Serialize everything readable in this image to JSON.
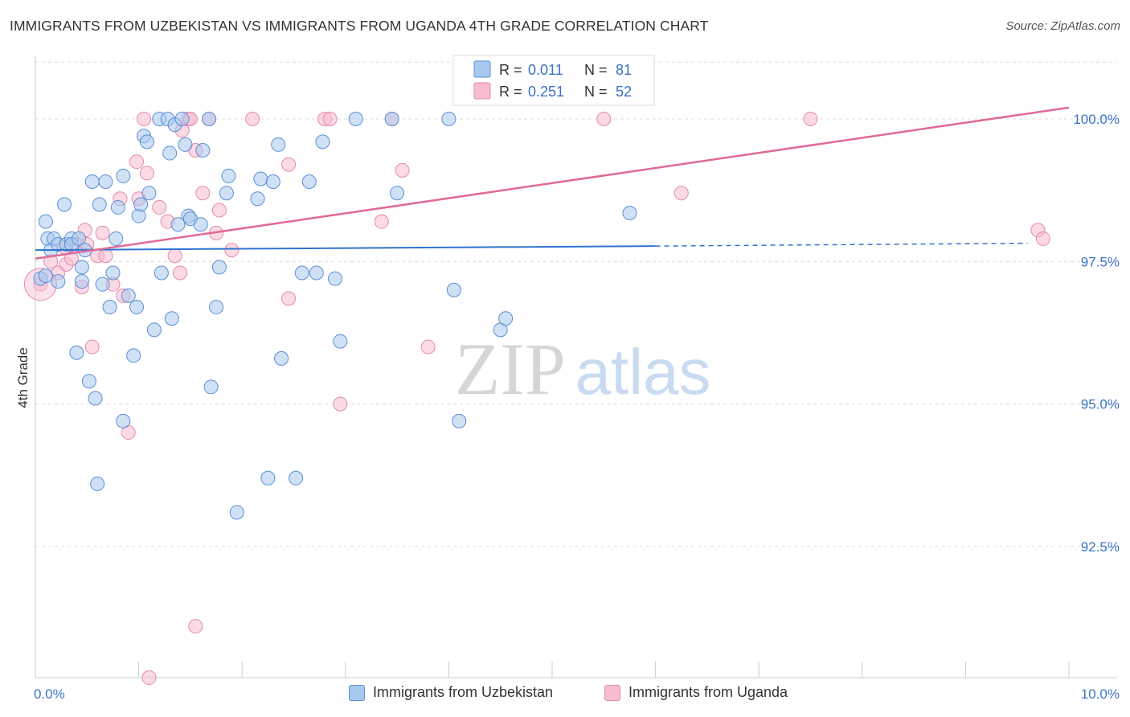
{
  "header": {
    "title": "IMMIGRANTS FROM UZBEKISTAN VS IMMIGRANTS FROM UGANDA 4TH GRADE CORRELATION CHART",
    "source": "Source: ZipAtlas.com"
  },
  "watermark": {
    "zip": "ZIP",
    "atlas": "atlas"
  },
  "colors": {
    "blue_fill": "#a9c8ef",
    "blue_stroke": "#5b8fd6",
    "blue_line": "#2f73cf",
    "pink_fill": "#f7bcd0",
    "pink_stroke": "#e58aa9",
    "pink_line": "#e0699a",
    "value_text": "#3a72c8",
    "grid": "#dcdcdc"
  },
  "legend": {
    "rows": [
      {
        "r_label": "R = ",
        "r_value": "0.011",
        "n_label": "N = ",
        "n_value": "81",
        "series": "blue"
      },
      {
        "r_label": "R = ",
        "r_value": "0.251",
        "n_label": "N = ",
        "n_value": "52",
        "series": "pink"
      }
    ]
  },
  "bottom_legend": [
    {
      "label": "Immigrants from Uzbekistan",
      "series": "blue"
    },
    {
      "label": "Immigrants from Uganda",
      "series": "pink"
    }
  ],
  "chart_data": {
    "type": "scatter",
    "title": "IMMIGRANTS FROM UZBEKISTAN VS IMMIGRANTS FROM UGANDA 4TH GRADE CORRELATION CHART",
    "xlabel": "",
    "ylabel": "4th Grade",
    "xlim": [
      0,
      10
    ],
    "ylim": [
      90.2,
      101.1
    ],
    "x_tick_labels": [
      {
        "value": 0,
        "label": "0.0%"
      },
      {
        "value": 10,
        "label": "10.0%"
      }
    ],
    "y_tick_labels": [
      {
        "value": 100,
        "label": "100.0%"
      },
      {
        "value": 97.5,
        "label": "97.5%"
      },
      {
        "value": 95,
        "label": "95.0%"
      },
      {
        "value": 92.5,
        "label": "92.5%"
      }
    ],
    "series": [
      {
        "name": "Immigrants from Uzbekistan",
        "color": "blue",
        "r": 0.011,
        "n": 81,
        "trend": {
          "x0": 0,
          "y0": 97.7,
          "x1": 6.0,
          "y1": 97.77,
          "dash_to_x": 9.6,
          "dash_to_y": 97.82
        },
        "points": [
          [
            0.05,
            97.2
          ],
          [
            0.1,
            97.25
          ],
          [
            0.1,
            98.2
          ],
          [
            0.12,
            97.9
          ],
          [
            0.15,
            97.7
          ],
          [
            0.18,
            97.9
          ],
          [
            0.22,
            97.8
          ],
          [
            0.22,
            97.15
          ],
          [
            0.28,
            98.5
          ],
          [
            0.3,
            97.8
          ],
          [
            0.35,
            97.9
          ],
          [
            0.35,
            97.8
          ],
          [
            0.4,
            95.9
          ],
          [
            0.42,
            97.9
          ],
          [
            0.45,
            97.4
          ],
          [
            0.45,
            97.15
          ],
          [
            0.48,
            97.7
          ],
          [
            0.52,
            95.4
          ],
          [
            0.55,
            98.9
          ],
          [
            0.58,
            95.1
          ],
          [
            0.6,
            93.6
          ],
          [
            0.62,
            98.5
          ],
          [
            0.65,
            97.1
          ],
          [
            0.68,
            98.9
          ],
          [
            0.72,
            96.7
          ],
          [
            0.75,
            97.3
          ],
          [
            0.78,
            97.9
          ],
          [
            0.8,
            98.45
          ],
          [
            0.85,
            99.0
          ],
          [
            0.85,
            94.7
          ],
          [
            0.9,
            96.9
          ],
          [
            0.95,
            95.85
          ],
          [
            0.98,
            96.7
          ],
          [
            1.0,
            98.3
          ],
          [
            1.02,
            98.5
          ],
          [
            1.05,
            99.7
          ],
          [
            1.08,
            99.6
          ],
          [
            1.1,
            98.7
          ],
          [
            1.15,
            96.3
          ],
          [
            1.2,
            100.0
          ],
          [
            1.22,
            97.3
          ],
          [
            1.28,
            100.0
          ],
          [
            1.3,
            99.4
          ],
          [
            1.32,
            96.5
          ],
          [
            1.35,
            99.9
          ],
          [
            1.38,
            98.15
          ],
          [
            1.42,
            100.0
          ],
          [
            1.45,
            99.55
          ],
          [
            1.48,
            98.3
          ],
          [
            1.5,
            98.25
          ],
          [
            1.6,
            98.15
          ],
          [
            1.62,
            99.45
          ],
          [
            1.68,
            100.0
          ],
          [
            1.7,
            95.3
          ],
          [
            1.75,
            96.7
          ],
          [
            1.78,
            97.4
          ],
          [
            1.85,
            98.7
          ],
          [
            1.87,
            99.0
          ],
          [
            1.95,
            93.1
          ],
          [
            2.15,
            98.6
          ],
          [
            2.18,
            98.95
          ],
          [
            2.25,
            93.7
          ],
          [
            2.3,
            98.9
          ],
          [
            2.35,
            99.55
          ],
          [
            2.38,
            95.8
          ],
          [
            2.52,
            93.7
          ],
          [
            2.58,
            97.3
          ],
          [
            2.65,
            98.9
          ],
          [
            2.72,
            97.3
          ],
          [
            2.78,
            99.6
          ],
          [
            2.9,
            97.2
          ],
          [
            2.95,
            96.1
          ],
          [
            3.1,
            100.0
          ],
          [
            3.45,
            100.0
          ],
          [
            3.5,
            98.7
          ],
          [
            4.0,
            100.0
          ],
          [
            4.05,
            97.0
          ],
          [
            4.1,
            94.7
          ],
          [
            4.5,
            96.3
          ],
          [
            4.55,
            96.5
          ],
          [
            5.75,
            98.35
          ]
        ]
      },
      {
        "name": "Immigrants from Uganda",
        "color": "pink",
        "r": 0.251,
        "n": 52,
        "trend": {
          "x0": 0,
          "y0": 97.55,
          "x1": 10.0,
          "y1": 100.2
        },
        "points": [
          [
            0.05,
            97.1
          ],
          [
            0.15,
            97.5
          ],
          [
            0.22,
            97.3
          ],
          [
            0.28,
            97.75
          ],
          [
            0.3,
            97.45
          ],
          [
            0.35,
            97.55
          ],
          [
            0.4,
            97.8
          ],
          [
            0.45,
            97.05
          ],
          [
            0.48,
            98.05
          ],
          [
            0.5,
            97.8
          ],
          [
            0.55,
            96.0
          ],
          [
            0.6,
            97.6
          ],
          [
            0.65,
            98.0
          ],
          [
            0.68,
            97.6
          ],
          [
            0.75,
            97.1
          ],
          [
            0.82,
            98.6
          ],
          [
            0.85,
            96.9
          ],
          [
            0.9,
            94.5
          ],
          [
            0.98,
            99.25
          ],
          [
            1.0,
            98.6
          ],
          [
            1.05,
            100.0
          ],
          [
            1.08,
            99.05
          ],
          [
            1.1,
            90.2
          ],
          [
            1.2,
            98.45
          ],
          [
            1.28,
            98.2
          ],
          [
            1.35,
            97.6
          ],
          [
            1.4,
            97.3
          ],
          [
            1.42,
            99.8
          ],
          [
            1.48,
            100.0
          ],
          [
            1.5,
            100.0
          ],
          [
            1.55,
            91.1
          ],
          [
            1.55,
            99.45
          ],
          [
            1.62,
            98.7
          ],
          [
            1.68,
            100.0
          ],
          [
            1.75,
            98.0
          ],
          [
            1.78,
            98.4
          ],
          [
            1.9,
            97.7
          ],
          [
            2.1,
            100.0
          ],
          [
            2.45,
            96.85
          ],
          [
            2.45,
            99.2
          ],
          [
            2.8,
            100.0
          ],
          [
            2.85,
            100.0
          ],
          [
            2.95,
            95.0
          ],
          [
            3.35,
            98.2
          ],
          [
            3.45,
            100.0
          ],
          [
            3.55,
            99.1
          ],
          [
            3.8,
            96.0
          ],
          [
            5.5,
            100.0
          ],
          [
            6.25,
            98.7
          ],
          [
            7.5,
            100.0
          ],
          [
            9.7,
            98.05
          ],
          [
            9.75,
            97.9
          ]
        ]
      }
    ]
  }
}
